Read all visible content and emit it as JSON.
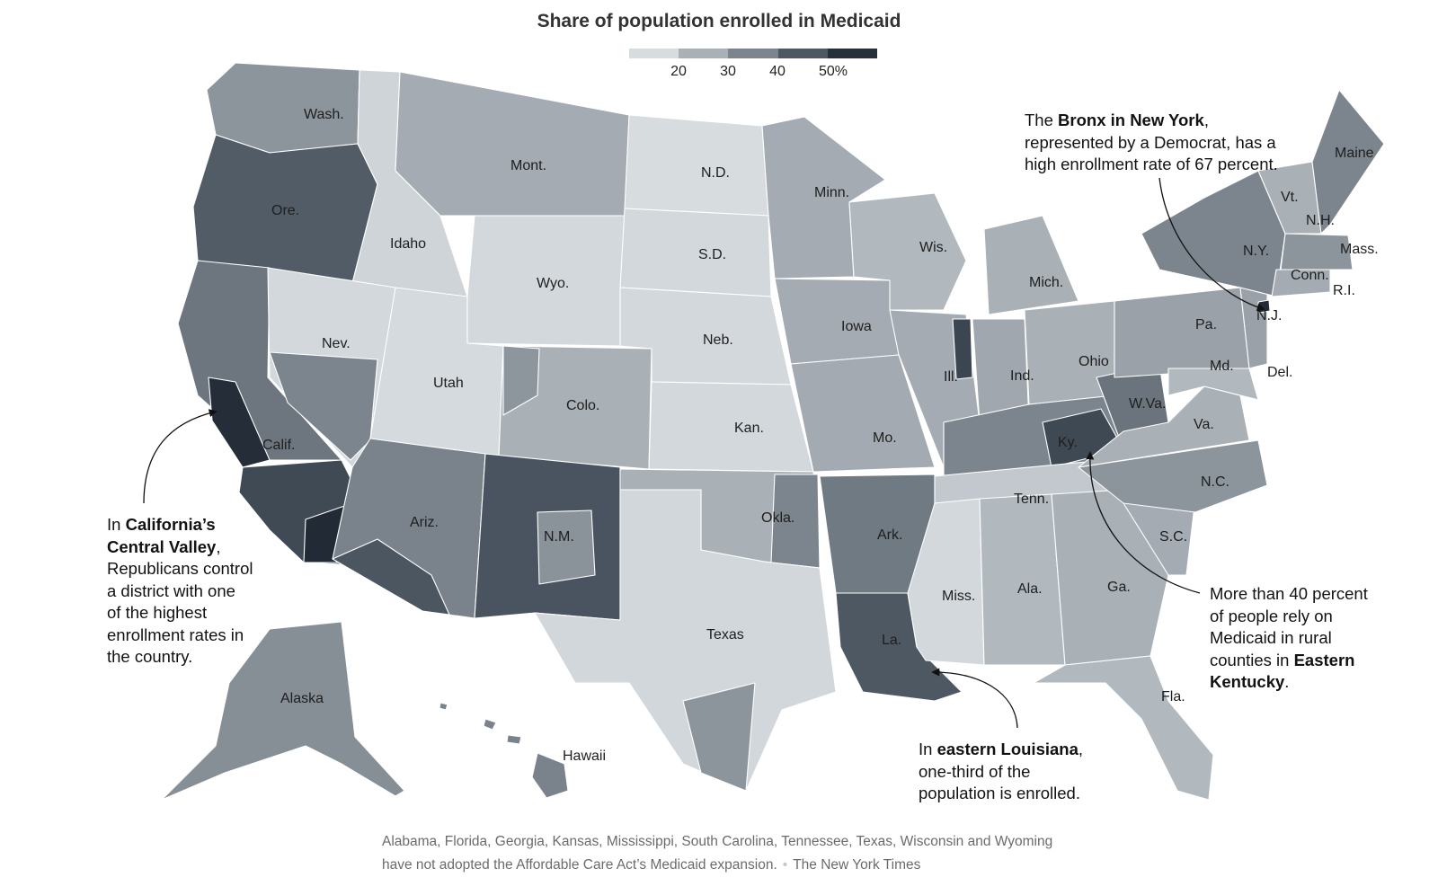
{
  "title": "Share of population enrolled in Medicaid",
  "legend": {
    "colors": [
      "#d7dcdf",
      "#a9b0b6",
      "#7c858d",
      "#4e5863",
      "#27303a"
    ],
    "ticks": [
      "20",
      "30",
      "40",
      "50%"
    ]
  },
  "state_labels": {
    "wash": "Wash.",
    "ore": "Ore.",
    "calif": "Calif.",
    "nev": "Nev.",
    "idaho": "Idaho",
    "mont": "Mont.",
    "wyo": "Wyo.",
    "utah": "Utah",
    "colo": "Colo.",
    "ariz": "Ariz.",
    "nm": "N.M.",
    "nd": "N.D.",
    "sd": "S.D.",
    "neb": "Neb.",
    "kan": "Kan.",
    "okla": "Okla.",
    "texas": "Texas",
    "minn": "Minn.",
    "iowa": "Iowa",
    "mo": "Mo.",
    "ark": "Ark.",
    "la": "La.",
    "wis": "Wis.",
    "ill": "Ill.",
    "mich": "Mich.",
    "ind": "Ind.",
    "ohio": "Ohio",
    "ky": "Ky.",
    "tenn": "Tenn.",
    "miss": "Miss.",
    "ala": "Ala.",
    "ga": "Ga.",
    "fla": "Fla.",
    "sc": "S.C.",
    "nc": "N.C.",
    "va": "Va.",
    "wva": "W.Va.",
    "md": "Md.",
    "del": "Del.",
    "pa": "Pa.",
    "nj": "N.J.",
    "ny": "N.Y.",
    "conn": "Conn.",
    "ri": "R.I.",
    "mass": "Mass.",
    "vt": "Vt.",
    "nh": "N.H.",
    "maine": "Maine",
    "alaska": "Alaska",
    "hawaii": "Hawaii"
  },
  "annotations": {
    "bronx": {
      "pre": "The ",
      "bold": "Bronx in New York",
      "post": ",",
      "line2": "represented by a Democrat, has a",
      "line3": "high enrollment rate of 67 percent."
    },
    "california": {
      "pre": "In ",
      "bold1": "California’s",
      "bold2": "Central Valley",
      "post": ",",
      "line3": "Republicans control",
      "line4": "a district with one",
      "line5": "of the highest",
      "line6": "enrollment rates in",
      "line7": "the country."
    },
    "louisiana": {
      "pre": "In ",
      "bold": "eastern Louisiana",
      "post": ",",
      "line2": "one-third of the",
      "line3": "population is enrolled."
    },
    "kentucky": {
      "line1": "More than 40 percent",
      "line2": "of people rely on",
      "line3": "Medicaid in rural",
      "pre4": "counties in ",
      "bold4": "Eastern",
      "bold5": "Kentucky",
      "post5": "."
    }
  },
  "footnote": {
    "line1": "Alabama, Florida, Georgia, Kansas, Mississippi, South Carolina, Tennessee, Texas, Wisconsin and Wyoming",
    "line2": "have not adopted the Affordable Care Act’s Medicaid expansion.",
    "source": "The New York Times"
  }
}
